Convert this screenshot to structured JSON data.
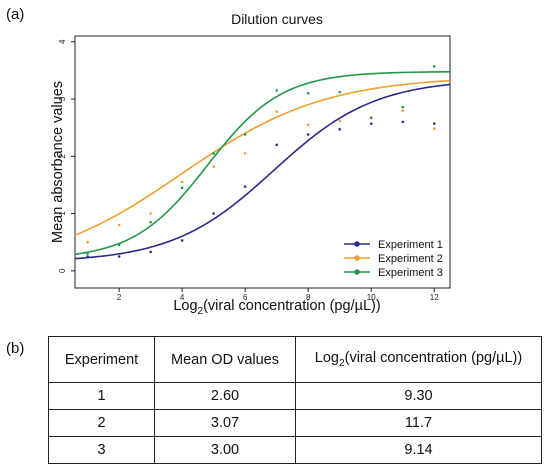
{
  "panels": {
    "a": "(a)",
    "b": "(b)"
  },
  "chart_data": {
    "type": "line",
    "title": "Dilution curves",
    "xlabel_prefix": "Log",
    "xlabel_sub": "2",
    "xlabel_rest": "(viral concentration (pg/µL))",
    "ylabel": "Mean absorbance values",
    "xlim": [
      0.6,
      12.5
    ],
    "ylim": [
      -0.3,
      4.1
    ],
    "xticks": [
      2,
      4,
      6,
      8,
      10,
      12
    ],
    "yticks": [
      0,
      1,
      2,
      3,
      4
    ],
    "grid": false,
    "legend_position": "bottom-right",
    "x": [
      1,
      2,
      3,
      4,
      5,
      6,
      7,
      8,
      9,
      10,
      11,
      12
    ],
    "series": [
      {
        "name": "Experiment 1",
        "color": "#2b2a8c",
        "points": [
          0.25,
          0.25,
          0.33,
          0.53,
          1.0,
          1.47,
          2.2,
          2.38,
          2.47,
          2.57,
          2.6,
          2.57
        ],
        "curve": {
          "min": 0.15,
          "max": 3.35,
          "x50": 6.9,
          "k": 0.62
        }
      },
      {
        "name": "Experiment 2",
        "color": "#f0a030",
        "points": [
          0.5,
          0.8,
          1.0,
          1.55,
          1.82,
          2.05,
          2.78,
          2.55,
          2.62,
          2.68,
          2.8,
          2.48
        ],
        "curve": {
          "min": 0.0,
          "max": 3.4,
          "x50": 4.0,
          "k": 0.44
        }
      },
      {
        "name": "Experiment 3",
        "color": "#22964a",
        "points": [
          0.3,
          0.45,
          0.85,
          1.45,
          2.05,
          2.38,
          3.15,
          3.1,
          3.12,
          2.67,
          2.86,
          3.57
        ],
        "curve": {
          "min": 0.2,
          "max": 3.48,
          "x50": 4.8,
          "k": 0.85
        }
      }
    ]
  },
  "table": {
    "headers": [
      "Experiment",
      "Mean OD values"
    ],
    "last_header_prefix": "Log",
    "last_header_sub": "2",
    "last_header_rest": "(viral concentration (pg/µL))",
    "rows": [
      [
        "1",
        "2.60",
        "9.30"
      ],
      [
        "2",
        "3.07",
        "11.7"
      ],
      [
        "3",
        "3.00",
        "9.14"
      ]
    ]
  }
}
